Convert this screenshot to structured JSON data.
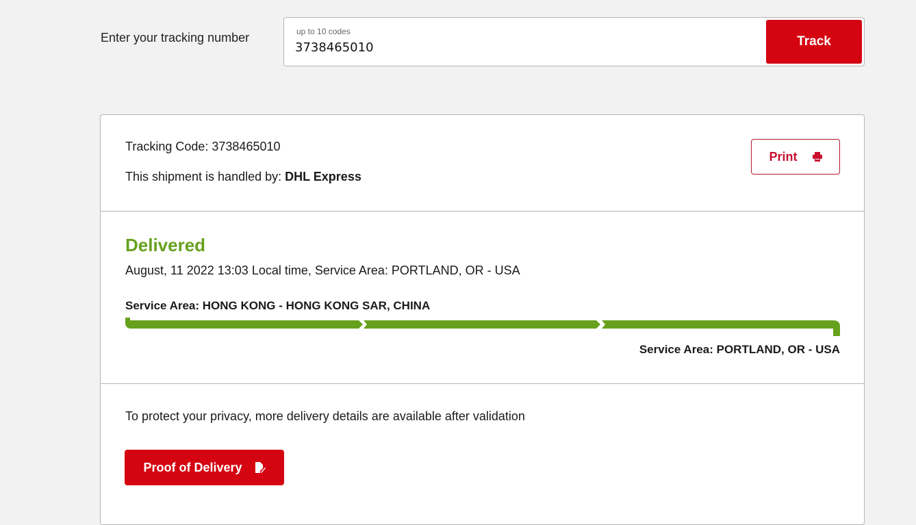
{
  "search": {
    "label": "Enter your tracking number",
    "placeholder_hint": "up to 10 codes",
    "value": "3738465010",
    "track_label": "Track"
  },
  "shipment": {
    "tracking_code_label": "Tracking Code: 3738465010",
    "handled_by_prefix": "This shipment is handled by: ",
    "carrier": "DHL Express",
    "print_label": "Print",
    "status": "Delivered",
    "status_detail": "August, 11 2022 13:03 Local time, Service Area: PORTLAND, OR - USA",
    "origin": "Service Area: HONG KONG - HONG KONG SAR, CHINA",
    "destination": "Service Area: PORTLAND, OR - USA",
    "progress_percent": 100
  },
  "privacy": {
    "notice": "To protect your privacy, more delivery details are available after validation",
    "pod_label": "Proof of Delivery"
  },
  "colors": {
    "brand_red": "#d40511",
    "delivered_green": "#66a11e"
  }
}
